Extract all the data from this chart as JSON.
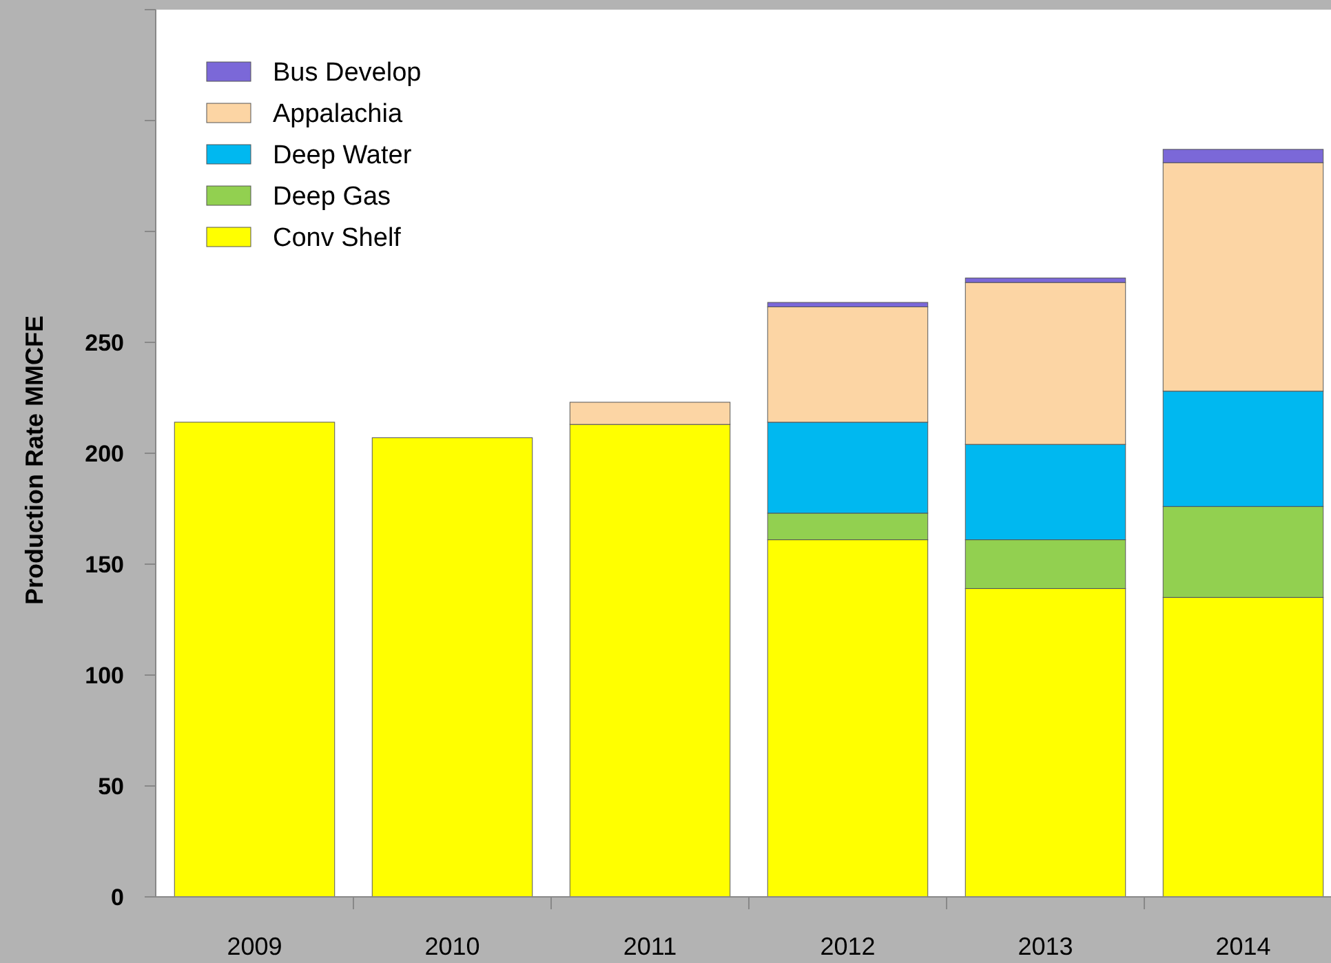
{
  "chart_data": {
    "type": "bar",
    "stacked": true,
    "ylabel": "Production Rate MMCFE",
    "categories": [
      "2009",
      "2010",
      "2011",
      "2012",
      "2013",
      "2014"
    ],
    "series": [
      {
        "name": "Conv Shelf",
        "color": "#ffff00",
        "values": [
          214,
          207,
          213,
          161,
          139,
          135
        ]
      },
      {
        "name": "Deep Gas",
        "color": "#92d050",
        "values": [
          null,
          null,
          null,
          12,
          22,
          41
        ]
      },
      {
        "name": "Deep Water",
        "color": "#00b8f0",
        "values": [
          null,
          null,
          null,
          41,
          43,
          52
        ]
      },
      {
        "name": "Appalachia",
        "color": "#fcd5a4",
        "values": [
          null,
          null,
          10,
          52,
          73,
          103
        ]
      },
      {
        "name": "Bus Develop",
        "color": "#7b68d8",
        "values": [
          null,
          null,
          null,
          2,
          2,
          6
        ]
      }
    ],
    "ylim": [
      0,
      400
    ],
    "yticks": [
      0,
      50,
      100,
      150,
      200,
      250,
      {
        "value": 300,
        "label": null
      },
      {
        "value": 350,
        "label": null
      },
      {
        "value": 400,
        "label": null
      }
    ],
    "grid": false,
    "legend": "top left"
  }
}
